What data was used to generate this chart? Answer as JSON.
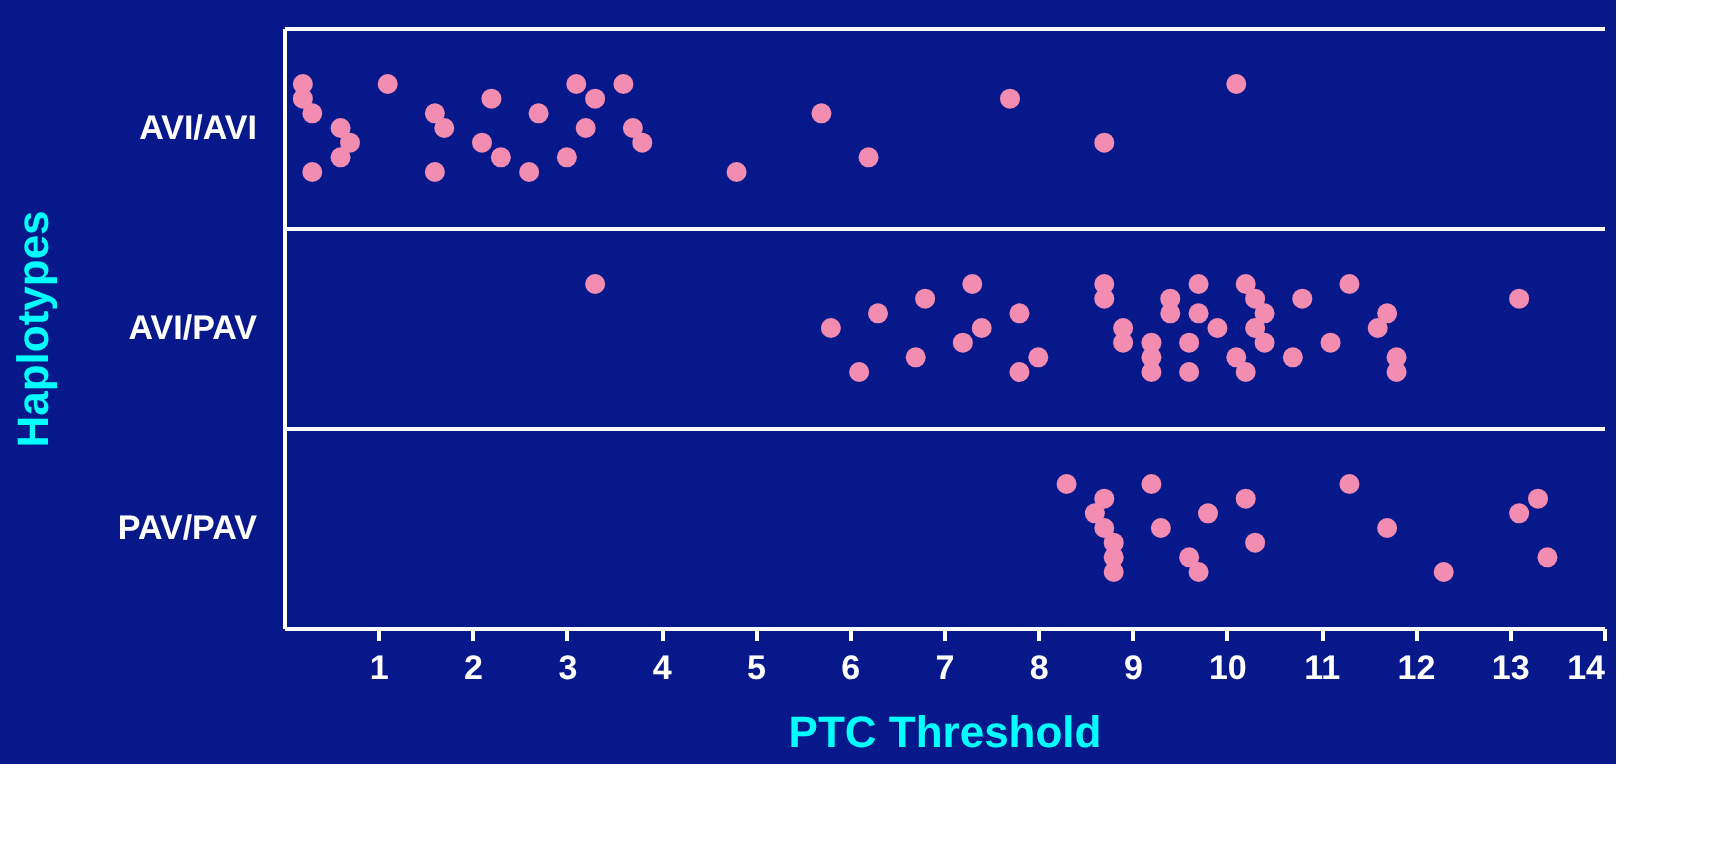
{
  "chart_data": {
    "type": "scatter",
    "orientation": "horizontal",
    "xlabel": "PTC Threshold",
    "ylabel": "Haplotypes",
    "categories": [
      "AVI/AVI",
      "AVI/PAV",
      "PAV/PAV"
    ],
    "xlim": [
      0,
      14
    ],
    "xticks": [
      1,
      2,
      3,
      4,
      5,
      6,
      7,
      8,
      9,
      10,
      11,
      12,
      13,
      14
    ],
    "grid": "y",
    "marker": "circle",
    "series": [
      {
        "color": "#f28cb0",
        "x": [
          "AVI/AVI",
          "AVI/AVI",
          "AVI/AVI",
          "AVI/AVI",
          "AVI/AVI",
          "AVI/AVI",
          "AVI/AVI",
          "AVI/AVI",
          "AVI/AVI",
          "AVI/AVI",
          "AVI/AVI",
          "AVI/AVI",
          "AVI/AVI",
          "AVI/AVI",
          "AVI/AVI",
          "AVI/AVI",
          "AVI/AVI",
          "AVI/AVI",
          "AVI/AVI",
          "AVI/AVI",
          "AVI/AVI",
          "AVI/AVI",
          "AVI/AVI",
          "AVI/AVI",
          "AVI/AVI",
          "AVI/AVI",
          "AVI/AVI",
          "AVI/AVI",
          "AVI/AVI"
        ],
        "values": [
          0.2,
          0.6,
          0.3,
          0.3,
          0.6,
          0.2,
          0.7,
          1.1,
          1.7,
          1.6,
          1.6,
          2.3,
          2.2,
          2.1,
          3.1,
          3.2,
          2.6,
          2.7,
          3.0,
          3.3,
          3.8,
          3.6,
          3.7,
          4.8,
          5.7,
          6.2,
          7.7,
          8.7,
          10.1
        ]
      },
      {
        "color": "#f28cb0",
        "x": [
          "AVI/PAV",
          "AVI/PAV",
          "AVI/PAV",
          "AVI/PAV",
          "AVI/PAV",
          "AVI/PAV",
          "AVI/PAV",
          "AVI/PAV",
          "AVI/PAV",
          "AVI/PAV",
          "AVI/PAV",
          "AVI/PAV",
          "AVI/PAV",
          "AVI/PAV",
          "AVI/PAV",
          "AVI/PAV",
          "AVI/PAV",
          "AVI/PAV",
          "AVI/PAV",
          "AVI/PAV",
          "AVI/PAV",
          "AVI/PAV",
          "AVI/PAV",
          "AVI/PAV",
          "AVI/PAV",
          "AVI/PAV",
          "AVI/PAV",
          "AVI/PAV",
          "AVI/PAV",
          "AVI/PAV",
          "AVI/PAV",
          "AVI/PAV",
          "AVI/PAV",
          "AVI/PAV",
          "AVI/PAV",
          "AVI/PAV",
          "AVI/PAV",
          "AVI/PAV",
          "AVI/PAV",
          "AVI/PAV",
          "AVI/PAV",
          "AVI/PAV"
        ],
        "values": [
          3.3,
          5.8,
          6.1,
          6.3,
          6.7,
          6.8,
          7.2,
          7.3,
          7.4,
          7.8,
          7.8,
          8.0,
          8.7,
          8.9,
          8.7,
          8.9,
          9.2,
          9.4,
          9.2,
          9.4,
          9.6,
          9.7,
          9.9,
          9.6,
          9.7,
          10.1,
          10.3,
          10.4,
          10.2,
          10.3,
          10.2,
          10.4,
          10.7,
          10.8,
          11.1,
          11.3,
          11.6,
          11.8,
          11.7,
          11.8,
          13.1,
          9.2
        ]
      },
      {
        "color": "#f28cb0",
        "x": [
          "PAV/PAV",
          "PAV/PAV",
          "PAV/PAV",
          "PAV/PAV",
          "PAV/PAV",
          "PAV/PAV",
          "PAV/PAV",
          "PAV/PAV",
          "PAV/PAV",
          "PAV/PAV",
          "PAV/PAV",
          "PAV/PAV",
          "PAV/PAV",
          "PAV/PAV",
          "PAV/PAV",
          "PAV/PAV",
          "PAV/PAV",
          "PAV/PAV",
          "PAV/PAV",
          "PAV/PAV"
        ],
        "values": [
          8.3,
          8.7,
          8.8,
          8.6,
          8.8,
          8.7,
          8.8,
          9.2,
          9.3,
          9.7,
          9.8,
          9.6,
          10.2,
          10.3,
          11.3,
          11.7,
          12.3,
          13.1,
          13.4,
          13.3
        ]
      }
    ]
  }
}
